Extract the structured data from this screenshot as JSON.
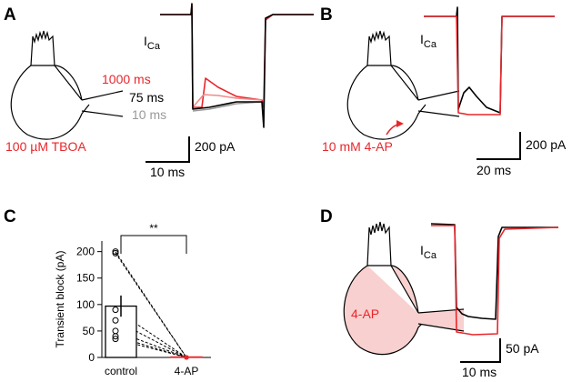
{
  "panel_a": {
    "label": "A",
    "current": "I",
    "current_sub": "Ca",
    "durations": [
      "1000 ms",
      "75 ms",
      "10 ms"
    ],
    "drug": "100 µM TBOA",
    "scale_y": "200 pA",
    "scale_x": "10 ms"
  },
  "panel_b": {
    "label": "B",
    "current": "I",
    "current_sub": "Ca",
    "drug": "10 mM 4-AP",
    "scale_y": "200 pA",
    "scale_x": "20 ms"
  },
  "panel_c": {
    "label": "C"
  },
  "panel_d": {
    "label": "D",
    "current": "I",
    "current_sub": "Ca",
    "drug": "4-AP",
    "scale_y": "50 pA",
    "scale_x": "10 ms"
  },
  "chart_data": {
    "type": "bar",
    "ylabel": "Transient block (pA)",
    "categories": [
      "control",
      "4-AP"
    ],
    "values": [
      97,
      1
    ],
    "errors": [
      20,
      2
    ],
    "colors": [
      "#000000",
      "#e8262b"
    ],
    "significance": "**",
    "ylim": [
      0,
      220
    ],
    "yticks": [
      0,
      50,
      100,
      150,
      200
    ],
    "cells": {
      "control": [
        200,
        197,
        90,
        70,
        50,
        40,
        35
      ],
      "treated": [
        0,
        0,
        0,
        0,
        0,
        0,
        0
      ]
    }
  }
}
